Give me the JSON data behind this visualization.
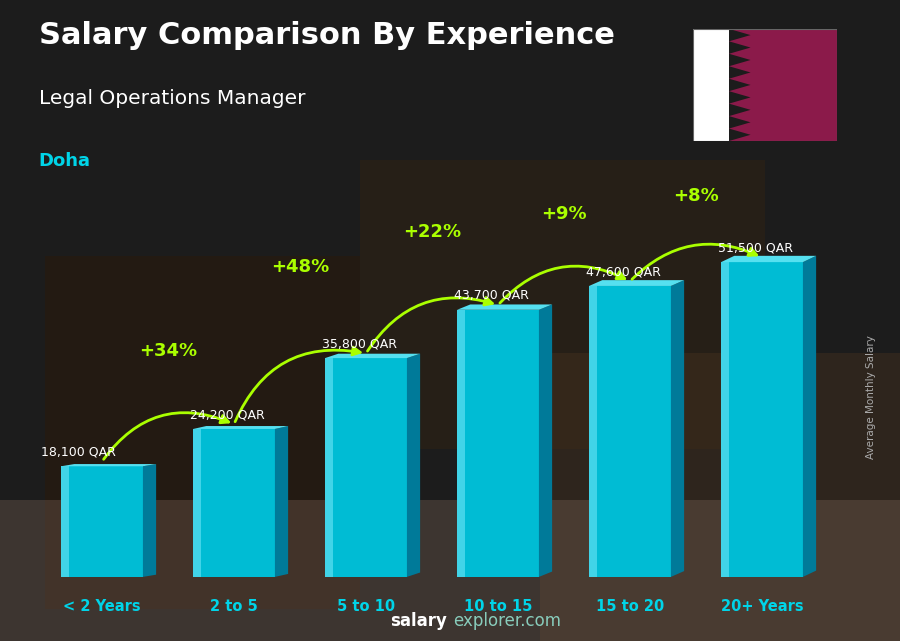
{
  "title": "Salary Comparison By Experience",
  "subtitle": "Legal Operations Manager",
  "city": "Doha",
  "ylabel": "Average Monthly Salary",
  "categories": [
    "< 2 Years",
    "2 to 5",
    "5 to 10",
    "10 to 15",
    "15 to 20",
    "20+ Years"
  ],
  "values": [
    18100,
    24200,
    35800,
    43700,
    47600,
    51500
  ],
  "salary_labels": [
    "18,100 QAR",
    "24,200 QAR",
    "35,800 QAR",
    "43,700 QAR",
    "47,600 QAR",
    "51,500 QAR"
  ],
  "pct_labels": [
    "+34%",
    "+48%",
    "+22%",
    "+9%",
    "+8%"
  ],
  "bar_color_face": "#00bcd4",
  "bar_color_light": "#4dd9ec",
  "bar_color_side": "#007a99",
  "bar_color_top": "#55e0f0",
  "bg_color": "#2a2a2a",
  "title_color": "#ffffff",
  "subtitle_color": "#ffffff",
  "city_color": "#00d4e8",
  "salary_label_color": "#ffffff",
  "pct_color": "#aaff00",
  "arrow_color": "#aaff00",
  "xtick_color": "#00d4e8",
  "footer_salary_color": "#ffffff",
  "footer_explorer_color": "#aaddcc",
  "flag_maroon": "#8B1A4A",
  "flag_white": "#ffffff",
  "arc_rad": [
    -0.4,
    -0.4,
    -0.38,
    -0.38,
    -0.35
  ]
}
